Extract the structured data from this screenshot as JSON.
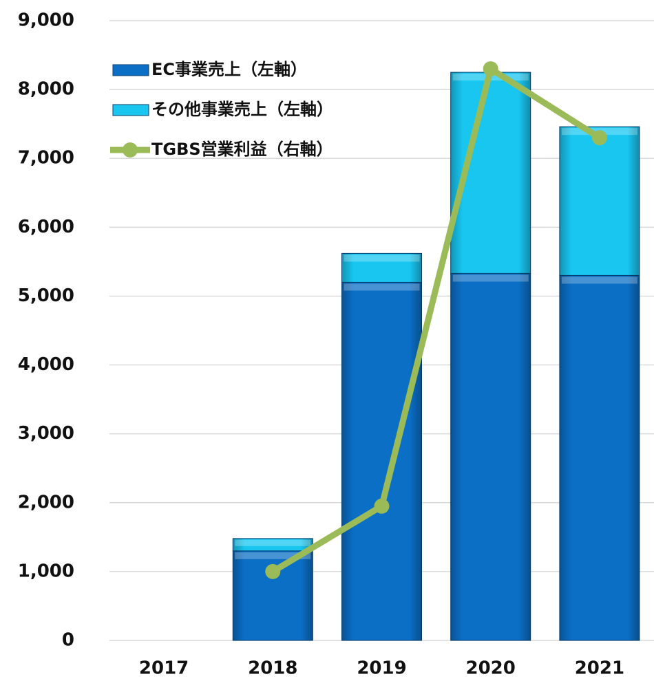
{
  "chart_data": {
    "type": "bar",
    "categories": [
      "2017",
      "2018",
      "2019",
      "2020",
      "2021"
    ],
    "series": [
      {
        "name": "EC事業売上（左軸）",
        "color": "#0b6fc6",
        "values": [
          0,
          1300,
          5200,
          5330,
          5300
        ]
      },
      {
        "name": "その他事業売上（左軸）",
        "color": "#18c6f0",
        "values": [
          0,
          180,
          420,
          2920,
          2160
        ]
      },
      {
        "name": "TGBS営業利益（右軸）",
        "color": "#9bbb59",
        "type": "line",
        "values": [
          null,
          1000,
          1950,
          8300,
          7300
        ]
      }
    ],
    "stacked": true,
    "ylim": [
      0,
      9000
    ],
    "yticks": [
      {
        "value": 0,
        "label": "0"
      },
      {
        "value": 1000,
        "label": "1,000"
      },
      {
        "value": 2000,
        "label": "2,000"
      },
      {
        "value": 3000,
        "label": "3,000"
      },
      {
        "value": 4000,
        "label": "4,000"
      },
      {
        "value": 5000,
        "label": "5,000"
      },
      {
        "value": 6000,
        "label": "6,000"
      },
      {
        "value": 7000,
        "label": "7,000"
      },
      {
        "value": 8000,
        "label": "8,000"
      },
      {
        "value": 9000,
        "label": "9,000"
      }
    ],
    "grid": true,
    "legend": "top-left"
  }
}
